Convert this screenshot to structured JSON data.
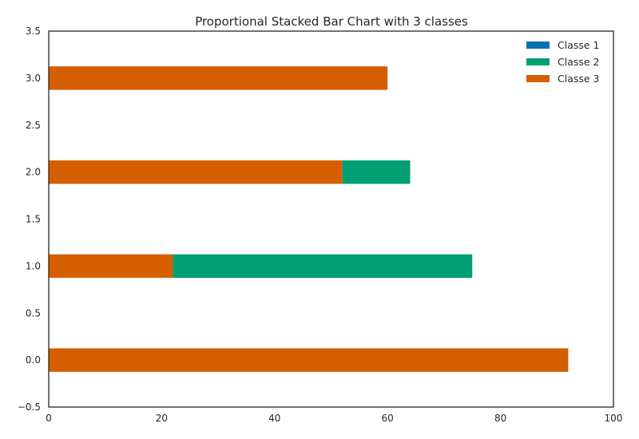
{
  "chart_data": {
    "type": "bar",
    "orientation": "horizontal",
    "stacked": true,
    "title": "Proportional Stacked Bar Chart with 3 classes",
    "xlabel": "",
    "ylabel": "",
    "xlim": [
      0,
      100
    ],
    "ylim": [
      -0.5,
      3.5
    ],
    "x_ticks": [
      "0",
      "20",
      "40",
      "60",
      "80",
      "100"
    ],
    "y_ticks": [
      "−0.5",
      "0.0",
      "0.5",
      "1.0",
      "1.5",
      "2.0",
      "2.5",
      "3.0",
      "3.5"
    ],
    "categories": [
      0,
      1,
      2,
      3
    ],
    "bar_height": 0.25,
    "grid": false,
    "legend_position": "top-right",
    "series": [
      {
        "name": "Classe 1",
        "color": "#0072b2",
        "values": [
          0,
          0,
          0,
          0
        ]
      },
      {
        "name": "Classe 2",
        "color": "#009e73",
        "values": [
          0,
          53,
          12,
          0
        ]
      },
      {
        "name": "Classe 3",
        "color": "#d55e00",
        "values": [
          92,
          22,
          52,
          60
        ]
      }
    ],
    "stack_order": [
      "Classe 3",
      "Classe 2",
      "Classe 1"
    ]
  }
}
